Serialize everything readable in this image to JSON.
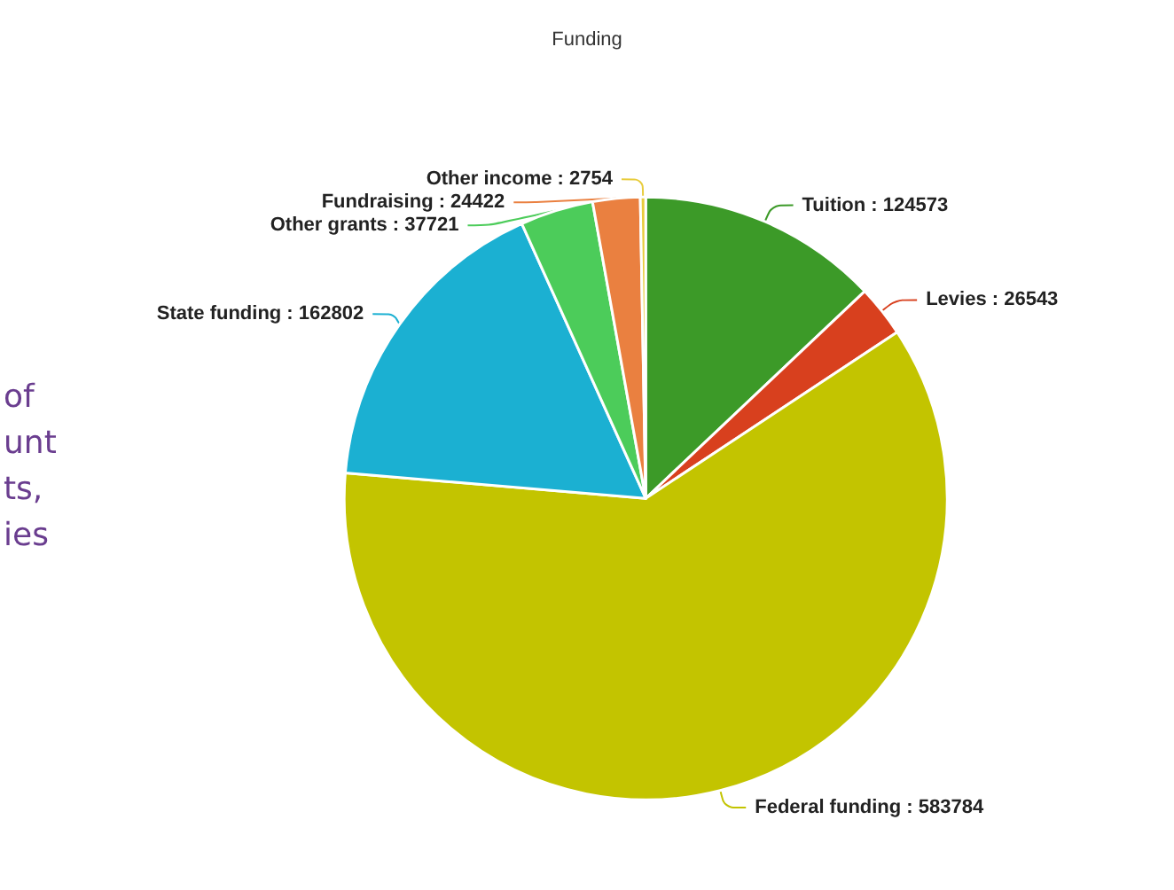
{
  "chart_data": {
    "type": "pie",
    "title": "Funding",
    "categories": [
      "Tuition",
      "Levies",
      "Federal funding",
      "State funding",
      "Other grants",
      "Fundraising",
      "Other income"
    ],
    "values": [
      124573,
      26543,
      583784,
      162802,
      37721,
      24422,
      2754
    ],
    "colors": [
      "#3c9a28",
      "#d8401e",
      "#c3c400",
      "#1bb0d2",
      "#4ccc5a",
      "#ea8040",
      "#e8cc3c"
    ],
    "value_labels": [
      ": 124573",
      ": 26543",
      ": 583784",
      ": 162802",
      ": 37721",
      ": 24422",
      ": 2754"
    ],
    "annotations": [
      "of",
      "unt",
      "ts,",
      "ies"
    ]
  }
}
